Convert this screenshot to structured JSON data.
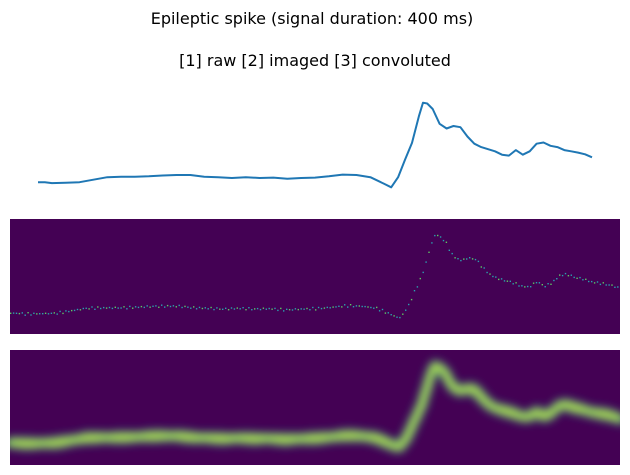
{
  "chart_data": {
    "type": "line",
    "title": "Epileptic spike (signal duration: 400 ms)",
    "subtitle": "[1] raw [2] imaged [3] convoluted",
    "duration_ms": 400,
    "panels": [
      "raw",
      "imaged",
      "convoluted"
    ],
    "xlabel": "",
    "ylabel": "",
    "axes_visible": false,
    "grid": false,
    "x_range": [
      0,
      400
    ],
    "y_range": [
      -1.0,
      1.6
    ],
    "series": [
      {
        "name": "raw",
        "x": [
          0,
          5,
          10,
          20,
          30,
          40,
          50,
          60,
          70,
          80,
          90,
          100,
          110,
          120,
          130,
          140,
          150,
          160,
          170,
          180,
          190,
          200,
          210,
          220,
          230,
          240,
          250,
          255,
          260,
          265,
          270,
          275,
          278,
          281,
          285,
          290,
          295,
          300,
          305,
          310,
          315,
          320,
          325,
          330,
          335,
          340,
          345,
          350,
          355,
          360,
          365,
          370,
          375,
          380,
          385,
          390,
          395,
          400
        ],
        "values": [
          -0.58,
          -0.58,
          -0.6,
          -0.59,
          -0.58,
          -0.52,
          -0.46,
          -0.45,
          -0.45,
          -0.44,
          -0.42,
          -0.41,
          -0.41,
          -0.45,
          -0.46,
          -0.48,
          -0.46,
          -0.48,
          -0.47,
          -0.5,
          -0.48,
          -0.47,
          -0.44,
          -0.4,
          -0.41,
          -0.46,
          -0.62,
          -0.7,
          -0.46,
          -0.05,
          0.35,
          0.98,
          1.3,
          1.28,
          1.15,
          0.8,
          0.69,
          0.75,
          0.72,
          0.5,
          0.33,
          0.25,
          0.2,
          0.15,
          0.07,
          0.05,
          0.18,
          0.07,
          0.15,
          0.33,
          0.36,
          0.28,
          0.25,
          0.18,
          0.15,
          0.12,
          0.08,
          0.01
        ]
      }
    ]
  }
}
